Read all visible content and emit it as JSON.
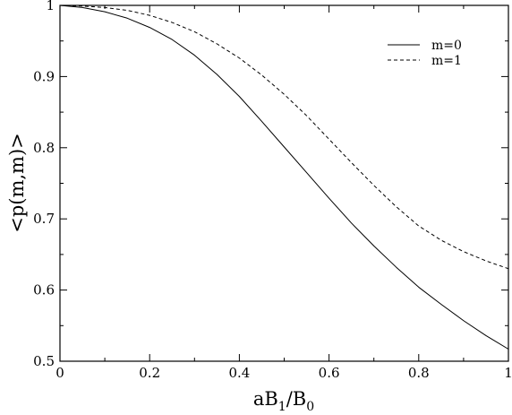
{
  "chart_data": {
    "type": "line",
    "title": "",
    "xlabel": {
      "base": "aB",
      "sub1": "1",
      "mid": "/B",
      "sub2": "0"
    },
    "ylabel": "<p(m,m)>",
    "xlim": [
      0,
      1
    ],
    "ylim": [
      0.5,
      1.0
    ],
    "x_ticks": [
      0,
      0.2,
      0.4,
      0.6,
      0.8,
      1
    ],
    "x_tick_labels": [
      "0",
      "0.2",
      "0.4",
      "0.6",
      "0.8",
      "1"
    ],
    "y_ticks": [
      0.5,
      0.6,
      0.7,
      0.8,
      0.9,
      1
    ],
    "y_tick_labels": [
      "0.5",
      "0.6",
      "0.7",
      "0.8",
      "0.9",
      "1"
    ],
    "grid": false,
    "legend_position": "top-right",
    "x": [
      0,
      0.05,
      0.1,
      0.15,
      0.2,
      0.25,
      0.3,
      0.35,
      0.4,
      0.45,
      0.5,
      0.55,
      0.6,
      0.65,
      0.7,
      0.75,
      0.8,
      0.85,
      0.9,
      0.95,
      1.0
    ],
    "series": [
      {
        "name": "m=0",
        "style": "solid",
        "color": "#000000",
        "values": [
          1.0,
          0.997,
          0.991,
          0.982,
          0.969,
          0.952,
          0.93,
          0.903,
          0.872,
          0.837,
          0.801,
          0.765,
          0.729,
          0.694,
          0.662,
          0.632,
          0.604,
          0.58,
          0.557,
          0.536,
          0.517
        ]
      },
      {
        "name": "m=1",
        "style": "dashed",
        "color": "#000000",
        "values": [
          1.0,
          0.999,
          0.997,
          0.993,
          0.986,
          0.976,
          0.963,
          0.946,
          0.926,
          0.902,
          0.875,
          0.845,
          0.812,
          0.779,
          0.747,
          0.717,
          0.69,
          0.67,
          0.654,
          0.641,
          0.63
        ]
      }
    ]
  }
}
